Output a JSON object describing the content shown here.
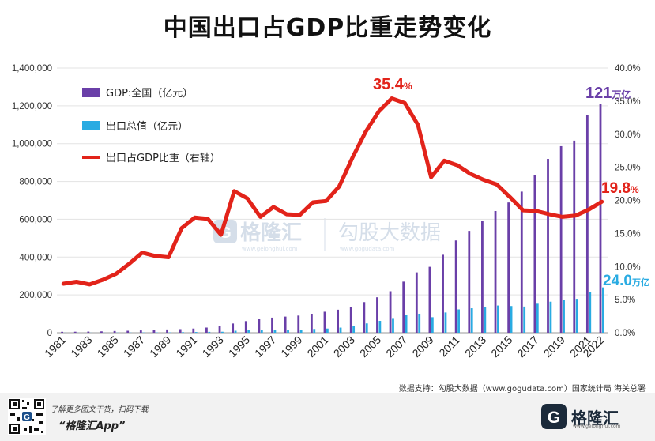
{
  "title": "中国出口占GDP比重走势变化",
  "source": "数据支持：勾股大数据（www.gogudata.com）国家统计局 海关总署",
  "watermark": {
    "brand": "格隆汇",
    "brand_url": "www.gelonghui.com",
    "data_brand": "勾股大数据",
    "data_url": "www.gogudata.com"
  },
  "footer": {
    "line1": "了解更多图文干货，扫码下载",
    "line2": "“格隆汇App”",
    "logo_text": "格隆汇",
    "logo_url": "www.gelonghui.com"
  },
  "colors": {
    "gdp": "#6a3fa8",
    "export": "#29abe2",
    "ratio": "#e2231a"
  },
  "chart_data": {
    "type": "bar",
    "title": "中国出口占GDP比重走势变化",
    "categories": [
      "1981",
      "1982",
      "1983",
      "1984",
      "1985",
      "1986",
      "1987",
      "1988",
      "1989",
      "1990",
      "1991",
      "1992",
      "1993",
      "1994",
      "1995",
      "1996",
      "1997",
      "1998",
      "1999",
      "2000",
      "2001",
      "2002",
      "2003",
      "2004",
      "2005",
      "2006",
      "2007",
      "2008",
      "2009",
      "2010",
      "2011",
      "2012",
      "2013",
      "2014",
      "2015",
      "2016",
      "2017",
      "2018",
      "2019",
      "2020",
      "2021",
      "2022"
    ],
    "x_tick_labels": [
      "1981",
      "1983",
      "1985",
      "1987",
      "1989",
      "1991",
      "1993",
      "1995",
      "1997",
      "1999",
      "2001",
      "2003",
      "2005",
      "2007",
      "2009",
      "2011",
      "2013",
      "2015",
      "2017",
      "2019",
      "2021",
      "2022"
    ],
    "series": [
      {
        "name": "GDP:全国（亿元）",
        "type": "bar",
        "axis": "left",
        "values": [
          4936,
          5373,
          6021,
          7279,
          9099,
          10376,
          12175,
          15180,
          17180,
          18873,
          22006,
          27195,
          35673,
          48638,
          61340,
          71814,
          79715,
          85196,
          90564,
          100280,
          110863,
          121717,
          137422,
          161840,
          187319,
          219439,
          270092,
          319245,
          348518,
          412119,
          487940,
          538580,
          592963,
          643563,
          688858,
          746395,
          832036,
          919281,
          986515,
          1015986,
          1149237,
          1210207
        ]
      },
      {
        "name": "出口总值（亿元）",
        "type": "bar",
        "axis": "left",
        "values": [
          367,
          414,
          438,
          581,
          809,
          1082,
          1470,
          1767,
          1956,
          2986,
          3827,
          4676,
          5285,
          10422,
          12452,
          12576,
          15161,
          15232,
          16160,
          19743,
          22024,
          26948,
          36288,
          49103,
          62648,
          77598,
          93627,
          100395,
          82030,
          107023,
          123241,
          129359,
          137131,
          143884,
          141167,
          138419,
          153309,
          164128,
          172374,
          179326,
          214255,
          239654
        ]
      },
      {
        "name": "出口占GDP比重（右轴）",
        "type": "line",
        "axis": "right",
        "unit": "%",
        "values": [
          7.4,
          7.7,
          7.3,
          8.0,
          8.9,
          10.4,
          12.1,
          11.6,
          11.4,
          15.8,
          17.4,
          17.2,
          14.8,
          21.4,
          20.3,
          17.5,
          19.0,
          17.9,
          17.8,
          19.7,
          19.9,
          22.1,
          26.4,
          30.3,
          33.4,
          35.4,
          34.7,
          31.4,
          23.5,
          26.0,
          25.3,
          24.0,
          23.1,
          22.4,
          20.5,
          18.5,
          18.4,
          17.9,
          17.5,
          17.7,
          18.6,
          19.8
        ]
      }
    ],
    "y_left": {
      "min": 0,
      "max": 1400000,
      "step": 200000,
      "tick_labels": [
        "0",
        "200,000",
        "400,000",
        "600,000",
        "800,000",
        "1,000,000",
        "1,200,000",
        "1,400,000"
      ]
    },
    "y_right": {
      "min": 0,
      "max": 40,
      "step": 5,
      "tick_labels": [
        "0.0%",
        "5.0%",
        "10.0%",
        "15.0%",
        "20.0%",
        "25.0%",
        "30.0%",
        "35.0%",
        "40.0%"
      ]
    },
    "grid": "horizontal",
    "legend_position": "top-left",
    "annotations": [
      {
        "type": "peak",
        "number": "35.4",
        "unit": "%",
        "color": "#e2231a"
      },
      {
        "type": "gdp_end",
        "number": "121",
        "unit": "万亿",
        "color": "#6a3fa8"
      },
      {
        "type": "ratio_end",
        "number": "19.8",
        "unit": "%",
        "color": "#e2231a"
      },
      {
        "type": "export_end",
        "number": "24.0",
        "unit": "万亿",
        "color": "#29abe2"
      }
    ]
  }
}
